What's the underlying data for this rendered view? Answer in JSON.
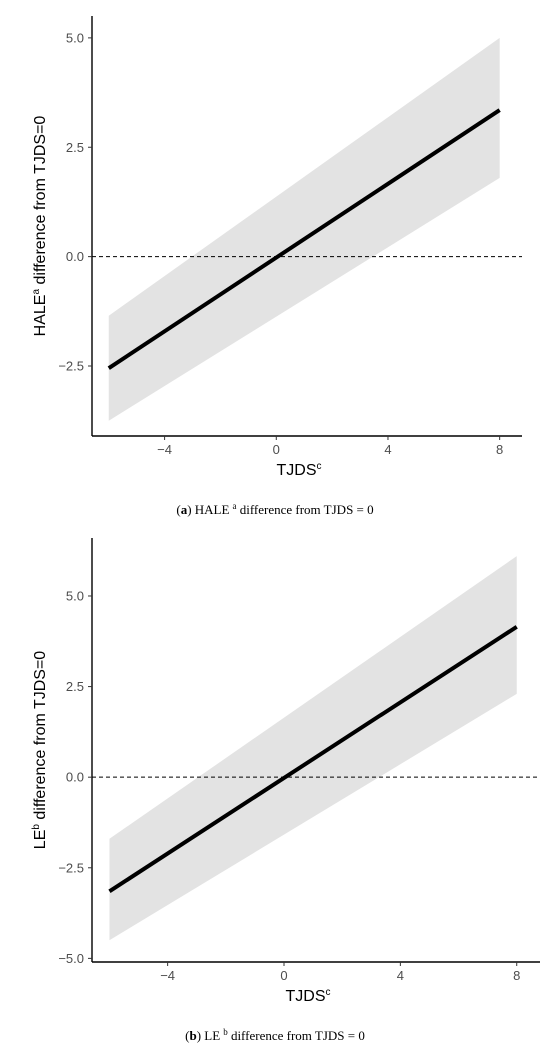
{
  "colors": {
    "band": "#e3e3e3",
    "line": "#000000",
    "axis": "#000000",
    "tick_text": "#4d4d4d"
  },
  "chart_data": [
    {
      "type": "line",
      "panel_letter": "a",
      "caption_text": "HALE",
      "caption_sup": "a",
      "caption_tail": " difference from TJDS = 0",
      "ylabel_main": "HALE",
      "ylabel_sup": "a",
      "ylabel_tail": " difference from TJDS=0",
      "xlabel_main": "TJDS",
      "xlabel_sup": "c",
      "xlim": [
        -6.6,
        8.8
      ],
      "ylim": [
        -4.1,
        5.5
      ],
      "xticks": [
        -4,
        0,
        4,
        8
      ],
      "xtick_labels": [
        "−4",
        "0",
        "4",
        "8"
      ],
      "yticks": [
        -2.5,
        0,
        2.5,
        5
      ],
      "ytick_labels": [
        "−2.5",
        "0.0",
        "2.5",
        "5.0"
      ],
      "reference_line": {
        "y": 0,
        "style": "dashed"
      },
      "series": [
        {
          "x": [
            -6,
            8
          ],
          "y": [
            -2.55,
            3.35
          ],
          "ci_upper": [
            -1.35,
            5.0
          ],
          "ci_lower": [
            -3.75,
            1.8
          ]
        }
      ]
    },
    {
      "type": "line",
      "panel_letter": "b",
      "caption_text": "LE",
      "caption_sup": "b",
      "caption_tail": " difference from TJDS = 0",
      "ylabel_main": "LE",
      "ylabel_sup": "b",
      "ylabel_tail": " difference from TJDS=0",
      "xlabel_main": "TJDS",
      "xlabel_sup": "c",
      "xlim": [
        -6.6,
        8.8
      ],
      "ylim": [
        -5.1,
        6.6
      ],
      "xticks": [
        -4,
        0,
        4,
        8
      ],
      "xtick_labels": [
        "−4",
        "0",
        "4",
        "8"
      ],
      "yticks": [
        -5,
        -2.5,
        0,
        2.5,
        5
      ],
      "ytick_labels": [
        "−5.0",
        "−2.5",
        "0.0",
        "2.5",
        "5.0"
      ],
      "reference_line": {
        "y": 0,
        "style": "dashed"
      },
      "series": [
        {
          "x": [
            -6,
            8
          ],
          "y": [
            -3.15,
            4.15
          ],
          "ci_upper": [
            -1.7,
            6.1
          ],
          "ci_lower": [
            -4.5,
            2.3
          ]
        }
      ]
    }
  ]
}
